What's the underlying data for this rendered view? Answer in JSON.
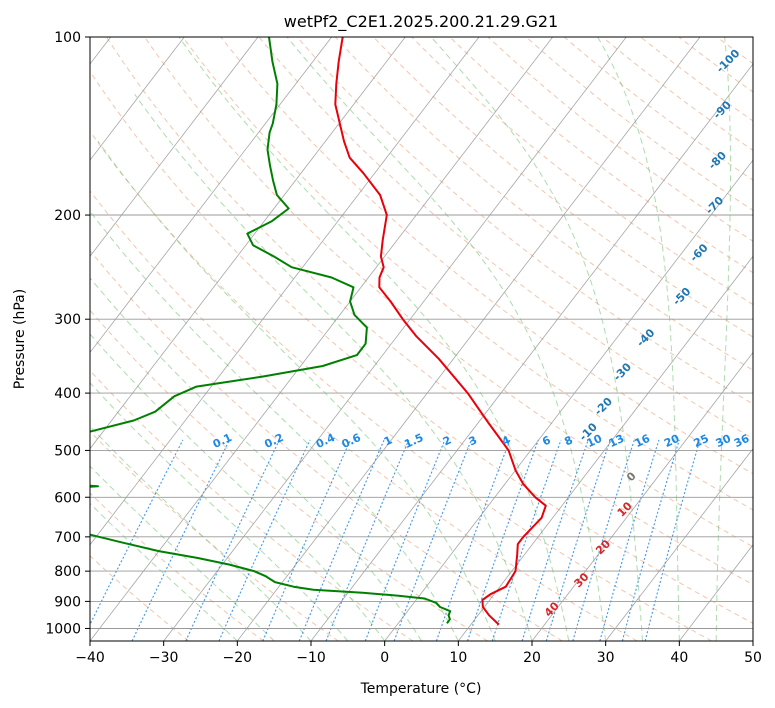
{
  "chart_data": {
    "type": "line",
    "subtype": "skew-t log-p diagram",
    "title": "wetPf2_C2E1.2025.200.21.29.G21",
    "xlabel": "Temperature (°C)",
    "ylabel": "Pressure (hPa)",
    "xlim": [
      -40,
      50
    ],
    "ylim": [
      1050,
      100
    ],
    "y_scale": "log",
    "x_ticks": [
      -40,
      -30,
      -20,
      -10,
      0,
      10,
      20,
      30,
      40,
      50
    ],
    "y_ticks": [
      100,
      200,
      300,
      400,
      500,
      600,
      700,
      800,
      900,
      1000
    ],
    "grid": true,
    "colors": {
      "temperature": "#e8000b",
      "dewpoint": "#008000",
      "dry_adiabat": "#e8a07a",
      "moist_adiabat": "#6cbf6c",
      "mixing_ratio": "#1e88e5",
      "isotherm": "#888888",
      "dry_adiabat_label": "#1f77b4",
      "moist_label_red": "#d62728",
      "moist_label_gray": "#777777"
    },
    "dry_adiabat_labels": [
      "-100",
      "-90",
      "-80",
      "-70",
      "-60",
      "-50",
      "-40",
      "-30",
      "-20",
      "-10"
    ],
    "dry_adiabat_label_points": [
      {
        "t": -13.6,
        "p": 110
      },
      {
        "t": -9.3,
        "p": 133
      },
      {
        "t": -4.7,
        "p": 162
      },
      {
        "t": -0.4,
        "p": 193
      },
      {
        "t": 2.4,
        "p": 232
      },
      {
        "t": 4.6,
        "p": 275
      },
      {
        "t": 4.0,
        "p": 323
      },
      {
        "t": 4.4,
        "p": 369
      },
      {
        "t": 5.4,
        "p": 422
      },
      {
        "t": 6.0,
        "p": 466
      }
    ],
    "mixing_ratio_labels": [
      "0.1",
      "0.2",
      "0.4",
      "0.6",
      "1",
      "1.5",
      "2",
      "3",
      "4",
      "6",
      "8",
      "10",
      "13",
      "16",
      "20",
      "25",
      "30",
      "36"
    ],
    "mixing_ratio_label_x": [
      -22,
      -15,
      -8,
      -4.5,
      0.5,
      4,
      8.5,
      12,
      16.5,
      22,
      25,
      28.5,
      31.5,
      35,
      39,
      43,
      46,
      48.5
    ],
    "moist_adiabat_labels": [
      "0",
      "10",
      "20",
      "30",
      "40"
    ],
    "moist_adiabat_label_points": [
      {
        "t": 16.5,
        "p": 555
      },
      {
        "t": 19,
        "p": 630
      },
      {
        "t": 20,
        "p": 730
      },
      {
        "t": 20.5,
        "p": 830
      },
      {
        "t": 19.5,
        "p": 930
      }
    ],
    "series": [
      {
        "name": "",
        "role": "temperature",
        "color": "#e8000b",
        "points": [
          {
            "p": 985,
            "t": 13.8
          },
          {
            "p": 950,
            "t": 11.5
          },
          {
            "p": 920,
            "t": 9.8
          },
          {
            "p": 895,
            "t": 9.0
          },
          {
            "p": 875,
            "t": 9.5
          },
          {
            "p": 850,
            "t": 10.8
          },
          {
            "p": 800,
            "t": 10.5
          },
          {
            "p": 750,
            "t": 9.0
          },
          {
            "p": 720,
            "t": 8.0
          },
          {
            "p": 700,
            "t": 8.0
          },
          {
            "p": 650,
            "t": 8.5
          },
          {
            "p": 620,
            "t": 7.8
          },
          {
            "p": 600,
            "t": 5.5
          },
          {
            "p": 570,
            "t": 2.5
          },
          {
            "p": 540,
            "t": 0.0
          },
          {
            "p": 500,
            "t": -3.0
          },
          {
            "p": 450,
            "t": -8.5
          },
          {
            "p": 400,
            "t": -14.5
          },
          {
            "p": 350,
            "t": -22.0
          },
          {
            "p": 320,
            "t": -27.5
          },
          {
            "p": 300,
            "t": -31.0
          },
          {
            "p": 280,
            "t": -34.5
          },
          {
            "p": 265,
            "t": -37.5
          },
          {
            "p": 255,
            "t": -38.5
          },
          {
            "p": 245,
            "t": -39.0
          },
          {
            "p": 235,
            "t": -40.5
          },
          {
            "p": 220,
            "t": -42.0
          },
          {
            "p": 200,
            "t": -44.0
          },
          {
            "p": 185,
            "t": -47.0
          },
          {
            "p": 170,
            "t": -51.5
          },
          {
            "p": 160,
            "t": -55.0
          },
          {
            "p": 150,
            "t": -57.5
          },
          {
            "p": 130,
            "t": -62.5
          },
          {
            "p": 120,
            "t": -64.5
          },
          {
            "p": 110,
            "t": -66.5
          },
          {
            "p": 100,
            "t": -68.5
          }
        ]
      },
      {
        "name": "",
        "role": "dewpoint",
        "color": "#008000",
        "points": [
          {
            "p": 980,
            "t": 6.6
          },
          {
            "p": 965,
            "t": 6.6
          },
          {
            "p": 950,
            "t": 6.0
          },
          {
            "p": 935,
            "t": 5.8
          },
          {
            "p": 920,
            "t": 4.0
          },
          {
            "p": 905,
            "t": 3.0
          },
          {
            "p": 890,
            "t": 1.0
          },
          {
            "p": 880,
            "t": -3.0
          },
          {
            "p": 870,
            "t": -8.0
          },
          {
            "p": 860,
            "t": -15.0
          },
          {
            "p": 850,
            "t": -18.0
          },
          {
            "p": 835,
            "t": -21.0
          },
          {
            "p": 815,
            "t": -23.0
          },
          {
            "p": 800,
            "t": -25.0
          },
          {
            "p": 780,
            "t": -29.0
          },
          {
            "p": 760,
            "t": -34.0
          },
          {
            "p": 740,
            "t": -40.0
          },
          {
            "p": 715,
            "t": -46.0
          },
          {
            "p": 690,
            "t": -52.0
          },
          {
            "p": 640,
            "t": -60.0
          },
          {
            "p": 590,
            "t": -64.0
          },
          {
            "p": 580,
            "t": -60.0
          },
          {
            "p": 575,
            "t": -55.0
          },
          {
            "p": 570,
            "t": -60.0
          },
          {
            "p": 560,
            "t": -66.0
          },
          {
            "p": 520,
            "t": -70.0
          },
          {
            "p": 490,
            "t": -68.0
          },
          {
            "p": 470,
            "t": -63.0
          },
          {
            "p": 445,
            "t": -57.0
          },
          {
            "p": 430,
            "t": -55.0
          },
          {
            "p": 405,
            "t": -54.0
          },
          {
            "p": 390,
            "t": -52.0
          },
          {
            "p": 375,
            "t": -44.0
          },
          {
            "p": 360,
            "t": -37.0
          },
          {
            "p": 345,
            "t": -33.5
          },
          {
            "p": 330,
            "t": -33.5
          },
          {
            "p": 310,
            "t": -35.0
          },
          {
            "p": 295,
            "t": -38.0
          },
          {
            "p": 280,
            "t": -40.0
          },
          {
            "p": 265,
            "t": -41.0
          },
          {
            "p": 255,
            "t": -45.0
          },
          {
            "p": 245,
            "t": -51.5
          },
          {
            "p": 235,
            "t": -55.0
          },
          {
            "p": 225,
            "t": -59.0
          },
          {
            "p": 215,
            "t": -61.0
          },
          {
            "p": 205,
            "t": -59.0
          },
          {
            "p": 195,
            "t": -58.0
          },
          {
            "p": 185,
            "t": -61.0
          },
          {
            "p": 175,
            "t": -63.0
          },
          {
            "p": 165,
            "t": -65.0
          },
          {
            "p": 155,
            "t": -67.0
          },
          {
            "p": 145,
            "t": -68.5
          },
          {
            "p": 140,
            "t": -69.0
          },
          {
            "p": 130,
            "t": -70.5
          },
          {
            "p": 120,
            "t": -72.5
          },
          {
            "p": 110,
            "t": -75.5
          },
          {
            "p": 100,
            "t": -78.5
          }
        ]
      }
    ]
  }
}
